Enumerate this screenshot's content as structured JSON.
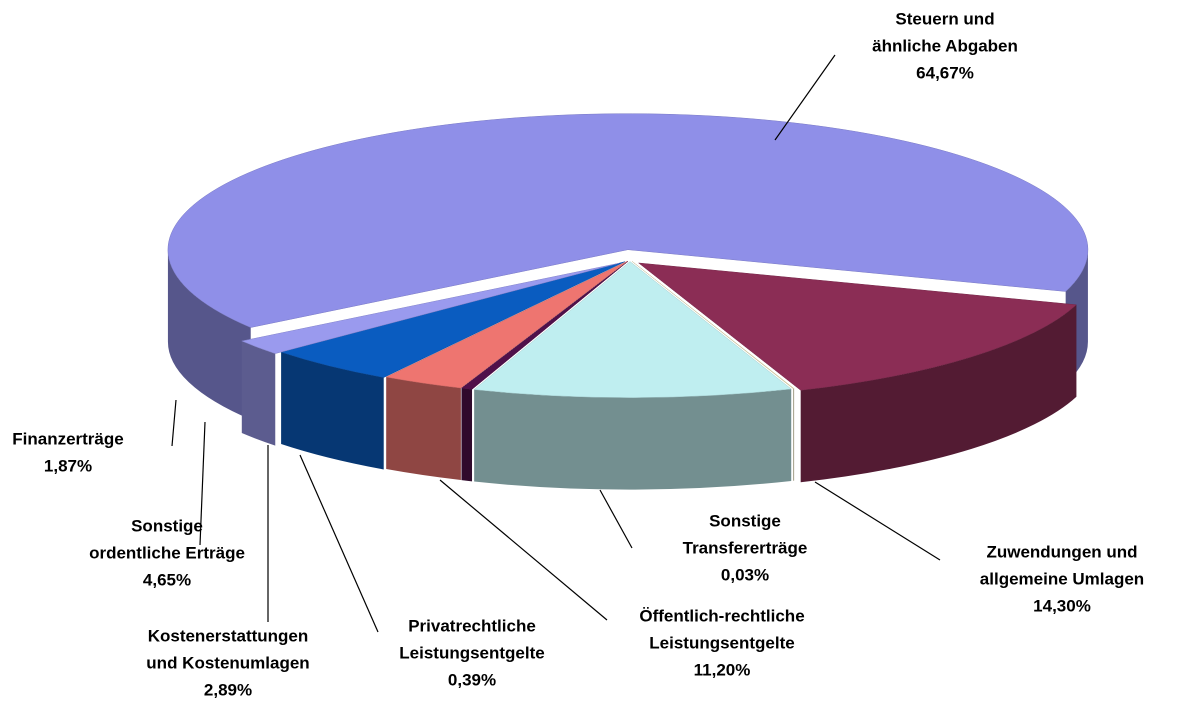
{
  "chart_data": {
    "type": "pie3d",
    "categories": [
      [
        "Steuern und",
        "ähnliche Abgaben"
      ],
      [
        "Zuwendungen und",
        "allgemeine Umlagen"
      ],
      [
        "Sonstige",
        "Transfererträge"
      ],
      [
        "Öffentlich-rechtliche",
        "Leistungsentgelte"
      ],
      [
        "Privatrechtliche",
        "Leistungsentgelte"
      ],
      [
        "Kostenerstattungen",
        "und Kostenumlagen"
      ],
      [
        "Sonstige",
        "ordentliche Erträge"
      ],
      [
        "Finanzerträge"
      ]
    ],
    "values": [
      64.67,
      14.3,
      0.03,
      11.2,
      0.39,
      2.89,
      4.65,
      1.87
    ],
    "value_labels": [
      "64,67%",
      "14,30%",
      "0,03%",
      "11,20%",
      "0,39%",
      "2,89%",
      "4,65%",
      "1,87%"
    ],
    "colors": [
      "#8f8fe8",
      "#8b2d55",
      "#e8e0b0",
      "#bfeef0",
      "#50104a",
      "#ee7570",
      "#0a5cc0",
      "#9a9aee"
    ]
  }
}
